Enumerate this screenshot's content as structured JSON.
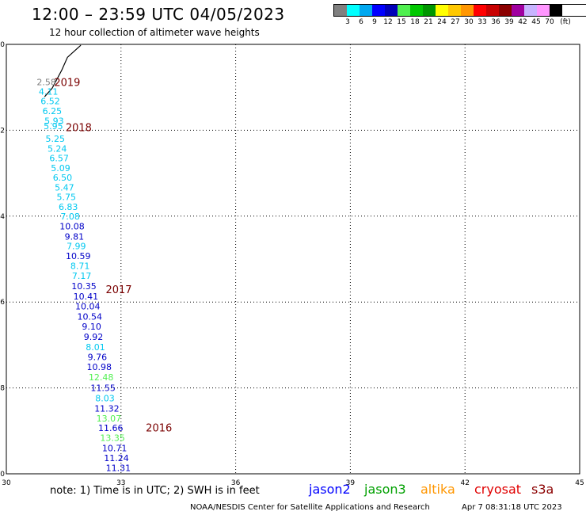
{
  "header": {
    "title": "12:00 – 23:59 UTC 04/05/2023",
    "subtitle": "12 hour collection of altimeter wave heights"
  },
  "color_scale": {
    "unit": "(ft)",
    "colors": [
      "#808080",
      "#00ffff",
      "#00a8f0",
      "#0000ff",
      "#0000b8",
      "#50f050",
      "#00c800",
      "#009600",
      "#ffff00",
      "#ffc800",
      "#ff9600",
      "#ff0000",
      "#c80000",
      "#8b0000",
      "#a000a0",
      "#c8b4ff",
      "#ff96ff",
      "#000000"
    ],
    "labels": [
      "3",
      "6",
      "9",
      "12",
      "15",
      "18",
      "21",
      "24",
      "27",
      "30",
      "33",
      "36",
      "39",
      "42",
      "45",
      "70"
    ]
  },
  "footer": {
    "note": "note: 1) Time is in UTC; 2) SWH is in feet",
    "credit": "NOAA/NESDIS Center for Satellite Applications and Research",
    "timestamp": "Apr  7 08:31:18 UTC 2023"
  },
  "legend": [
    {
      "name": "jason2",
      "color": "#0000ff"
    },
    {
      "name": "jason3",
      "color": "#00a000"
    },
    {
      "name": "altika",
      "color": "#ff9600"
    },
    {
      "name": "cryosat",
      "color": "#e00000"
    },
    {
      "name": "s3a",
      "color": "#8b0000"
    }
  ],
  "chart_data": {
    "type": "scatter",
    "xlim": [
      30,
      45
    ],
    "ylim": [
      -40,
      -30
    ],
    "xticks": [
      "30",
      "33",
      "36",
      "39",
      "42",
      "45"
    ],
    "yticks": [
      "-30",
      "-32",
      "-34",
      "-36",
      "-38",
      "-40"
    ],
    "grid": true,
    "coastline": [
      [
        31.0,
        -31.22
      ],
      [
        31.2,
        -31.02
      ],
      [
        31.45,
        -30.6
      ],
      [
        31.6,
        -30.3
      ],
      [
        31.95,
        -30.02
      ]
    ],
    "year_labels": [
      {
        "text": "2019",
        "x": 31.25,
        "y": -30.88
      },
      {
        "text": "2018",
        "x": 31.55,
        "y": -31.93
      },
      {
        "text": "2017",
        "x": 32.6,
        "y": -35.7
      },
      {
        "text": "2016",
        "x": 33.65,
        "y": -38.92
      }
    ],
    "points": [
      {
        "x": 31.05,
        "y": -30.88,
        "value": "2.58",
        "color": "#808080"
      },
      {
        "x": 31.1,
        "y": -31.1,
        "value": "4.11",
        "color": "#00c8f0"
      },
      {
        "x": 31.15,
        "y": -31.32,
        "value": "6.52",
        "color": "#00c8f0"
      },
      {
        "x": 31.2,
        "y": -31.55,
        "value": "6.25",
        "color": "#00c8f0"
      },
      {
        "x": 31.25,
        "y": -31.78,
        "value": "5.93",
        "color": "#00c8f0"
      },
      {
        "x": 31.23,
        "y": -31.9,
        "value": "5.95",
        "color": "#00c8f0"
      },
      {
        "x": 31.28,
        "y": -32.2,
        "value": "5.25",
        "color": "#00c8f0"
      },
      {
        "x": 31.33,
        "y": -32.43,
        "value": "5.24",
        "color": "#00c8f0"
      },
      {
        "x": 31.38,
        "y": -32.65,
        "value": "6.57",
        "color": "#00c8f0"
      },
      {
        "x": 31.42,
        "y": -32.88,
        "value": "5.09",
        "color": "#00c8f0"
      },
      {
        "x": 31.47,
        "y": -33.1,
        "value": "6.50",
        "color": "#00c8f0"
      },
      {
        "x": 31.52,
        "y": -33.33,
        "value": "5.47",
        "color": "#00c8f0"
      },
      {
        "x": 31.57,
        "y": -33.55,
        "value": "5.75",
        "color": "#00c8f0"
      },
      {
        "x": 31.62,
        "y": -33.78,
        "value": "6.83",
        "color": "#00c8f0"
      },
      {
        "x": 31.67,
        "y": -34.0,
        "value": "7.08",
        "color": "#00c8f0"
      },
      {
        "x": 31.72,
        "y": -34.23,
        "value": "10.08",
        "color": "#0000c8"
      },
      {
        "x": 31.78,
        "y": -34.47,
        "value": "9.81",
        "color": "#0000c8"
      },
      {
        "x": 31.83,
        "y": -34.7,
        "value": "7.99",
        "color": "#00c8f0"
      },
      {
        "x": 31.88,
        "y": -34.93,
        "value": "10.59",
        "color": "#0000c8"
      },
      {
        "x": 31.93,
        "y": -35.16,
        "value": "8.71",
        "color": "#00c8f0"
      },
      {
        "x": 31.97,
        "y": -35.39,
        "value": "7.17",
        "color": "#00c8f0"
      },
      {
        "x": 32.03,
        "y": -35.63,
        "value": "10.35",
        "color": "#0000c8"
      },
      {
        "x": 32.08,
        "y": -35.87,
        "value": "10.41",
        "color": "#0000c8"
      },
      {
        "x": 32.13,
        "y": -36.1,
        "value": "10.04",
        "color": "#0000c8"
      },
      {
        "x": 32.18,
        "y": -36.34,
        "value": "10.54",
        "color": "#0000c8"
      },
      {
        "x": 32.23,
        "y": -36.57,
        "value": "9.10",
        "color": "#0000c8"
      },
      {
        "x": 32.28,
        "y": -36.81,
        "value": "9.92",
        "color": "#0000c8"
      },
      {
        "x": 32.33,
        "y": -37.05,
        "value": "8.01",
        "color": "#00c8f0"
      },
      {
        "x": 32.38,
        "y": -37.28,
        "value": "9.76",
        "color": "#0000c8"
      },
      {
        "x": 32.43,
        "y": -37.51,
        "value": "10.98",
        "color": "#0000c8"
      },
      {
        "x": 32.48,
        "y": -37.75,
        "value": "12.48",
        "color": "#50f050"
      },
      {
        "x": 32.53,
        "y": -38.0,
        "value": "11.55",
        "color": "#0000c8"
      },
      {
        "x": 32.58,
        "y": -38.24,
        "value": "8.03",
        "color": "#00c8f0"
      },
      {
        "x": 32.63,
        "y": -38.48,
        "value": "11.32",
        "color": "#0000c8"
      },
      {
        "x": 32.68,
        "y": -38.71,
        "value": "13.07",
        "color": "#50f050"
      },
      {
        "x": 32.73,
        "y": -38.93,
        "value": "11.66",
        "color": "#0000c8"
      },
      {
        "x": 32.78,
        "y": -39.16,
        "value": "13.35",
        "color": "#50f050"
      },
      {
        "x": 32.83,
        "y": -39.4,
        "value": "10.71",
        "color": "#0000c8"
      },
      {
        "x": 32.88,
        "y": -39.63,
        "value": "11.24",
        "color": "#0000c8"
      },
      {
        "x": 32.93,
        "y": -39.86,
        "value": "11.31",
        "color": "#0000c8"
      }
    ]
  }
}
